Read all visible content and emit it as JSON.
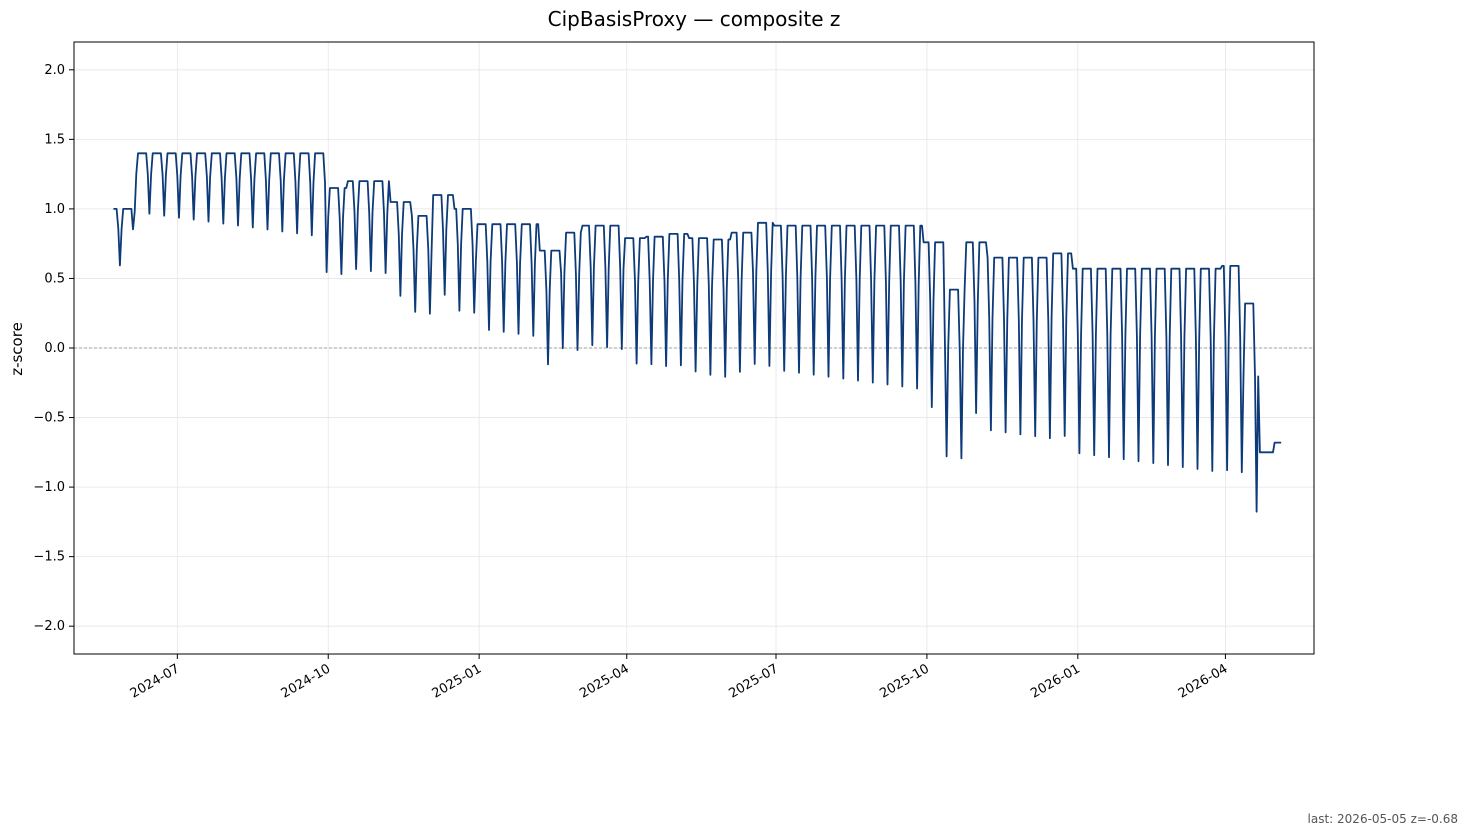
{
  "chart_data": {
    "type": "line",
    "title": "CipBasisProxy — composite z",
    "ylabel": "z-score",
    "xlabel": "",
    "ylim": [
      -2.2,
      2.2
    ],
    "xlim": [
      "2024-04-29",
      "2026-05-25"
    ],
    "grid": true,
    "zero_line": true,
    "line_color": "#0d3a78",
    "x_tick_labels": [
      "2024-07",
      "2024-10",
      "2025-01",
      "2025-04",
      "2025-07",
      "2025-10",
      "2026-01",
      "2026-04"
    ],
    "y_tick_labels": [
      "2.0",
      "1.5",
      "1.0",
      "0.5",
      "0.0",
      "−0.5",
      "−1.0",
      "−1.5",
      "−2.0"
    ],
    "y_tick_values": [
      2.0,
      1.5,
      1.0,
      0.5,
      0.0,
      -0.5,
      -1.0,
      -1.5,
      -2.0
    ],
    "series": [
      {
        "x": [
          "2024-05-23",
          "2024-06-05",
          "2024-06-18",
          "2024-07-01",
          "2024-07-14",
          "2024-07-27",
          "2024-08-09",
          "2024-08-22",
          "2024-09-04",
          "2024-09-17",
          "2024-09-30",
          "2024-10-13",
          "2024-10-26",
          "2024-11-08",
          "2024-11-21",
          "2024-12-04",
          "2024-12-17",
          "2024-12-30",
          "2025-01-12",
          "2025-01-25",
          "2025-02-07",
          "2025-02-20",
          "2025-03-05",
          "2025-03-18",
          "2025-03-31",
          "2025-04-13",
          "2025-04-26",
          "2025-05-09",
          "2025-05-22",
          "2025-06-04",
          "2025-06-17",
          "2025-06-30",
          "2025-07-13",
          "2025-07-26",
          "2025-08-08",
          "2025-08-21",
          "2025-09-03",
          "2025-09-16",
          "2025-09-29",
          "2025-10-12",
          "2025-10-25",
          "2025-11-07",
          "2025-11-20",
          "2025-12-03",
          "2025-12-16",
          "2025-12-29",
          "2026-01-11",
          "2026-01-24",
          "2026-02-06",
          "2026-02-19",
          "2026-03-04",
          "2026-03-17",
          "2026-03-30",
          "2026-04-12",
          "2026-04-25",
          "2026-05-05"
        ],
        "values": [
          1.0,
          1.4,
          1.4,
          1.4,
          1.4,
          1.4,
          1.4,
          1.4,
          1.4,
          1.4,
          1.15,
          1.2,
          1.2,
          1.05,
          0.95,
          1.1,
          1.0,
          0.89,
          0.89,
          0.89,
          0.7,
          0.83,
          0.88,
          0.88,
          0.79,
          0.8,
          0.82,
          0.79,
          0.78,
          0.83,
          0.9,
          0.88,
          0.88,
          0.88,
          0.88,
          0.88,
          0.88,
          0.88,
          0.76,
          0.42,
          0.76,
          0.65,
          0.65,
          0.65,
          0.68,
          0.57,
          0.57,
          0.57,
          0.57,
          0.57,
          0.57,
          0.57,
          0.59,
          0.32,
          0.33,
          -0.68
        ]
      }
    ],
    "footer": "last: 2026-05-05 z=-0.68"
  }
}
